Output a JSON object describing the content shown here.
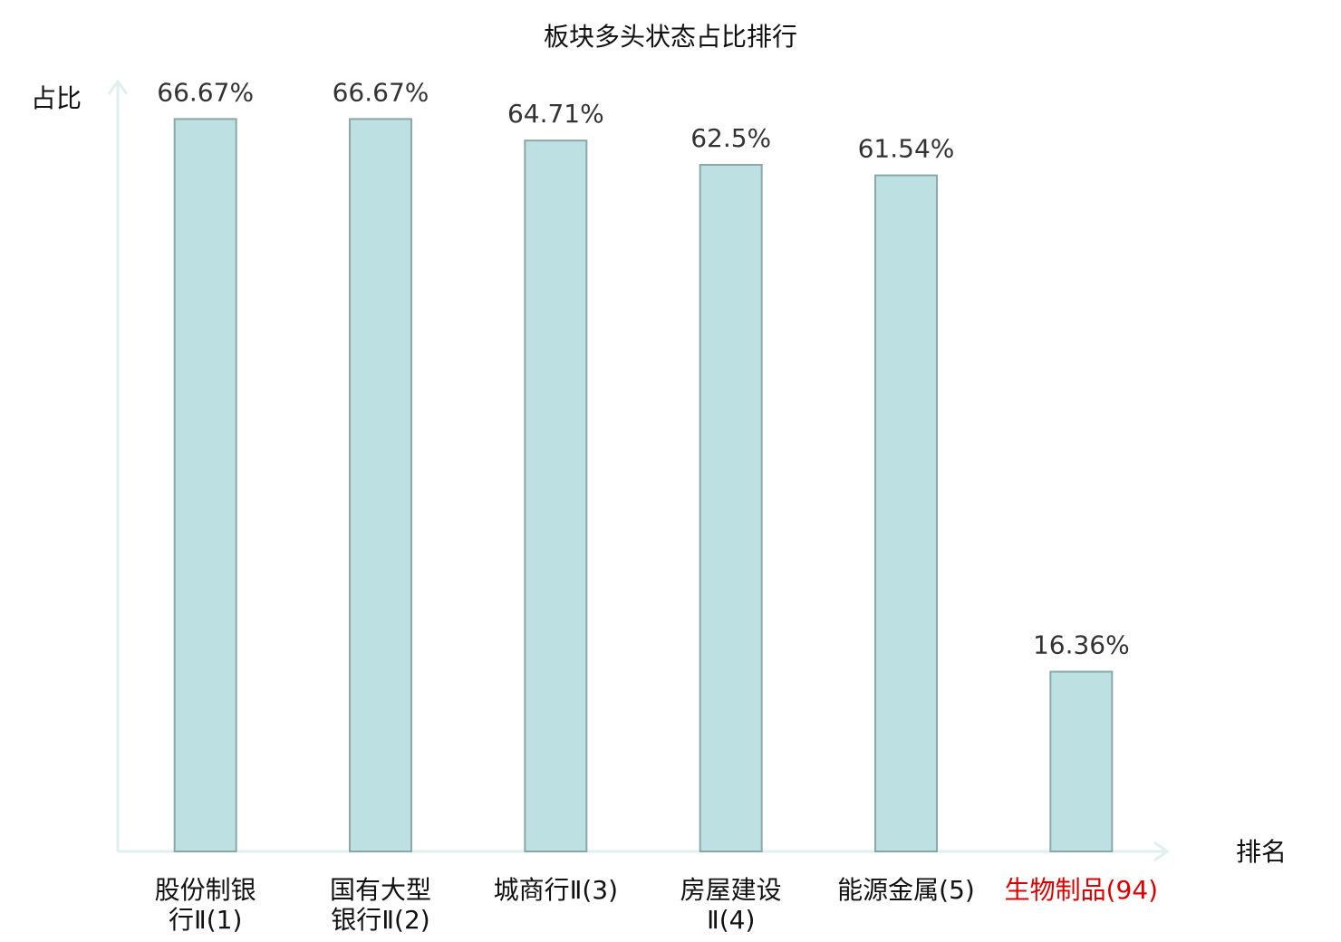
{
  "chart_data": {
    "type": "bar",
    "title": "板块多头状态占比排行",
    "y_label": "占比",
    "x_label": "排名",
    "categories": [
      "股份制银\n行Ⅱ(1)",
      "国有大型\n银行Ⅱ(2)",
      "城商行Ⅱ(3)",
      "房屋建设\nⅡ(4)",
      "能源金属(5)",
      "生物制品(94)"
    ],
    "category_label_colors": [
      "#111111",
      "#111111",
      "#111111",
      "#111111",
      "#111111",
      "#e00000"
    ],
    "values": [
      66.67,
      66.67,
      64.71,
      62.5,
      61.54,
      16.36
    ],
    "value_labels": [
      "66.67%",
      "66.67%",
      "64.71%",
      "62.5%",
      "61.54%",
      "16.36%"
    ],
    "color": "#bde0e3",
    "edge_color": "#8aa8a8",
    "ylim": [
      0,
      70
    ],
    "grid": false
  }
}
